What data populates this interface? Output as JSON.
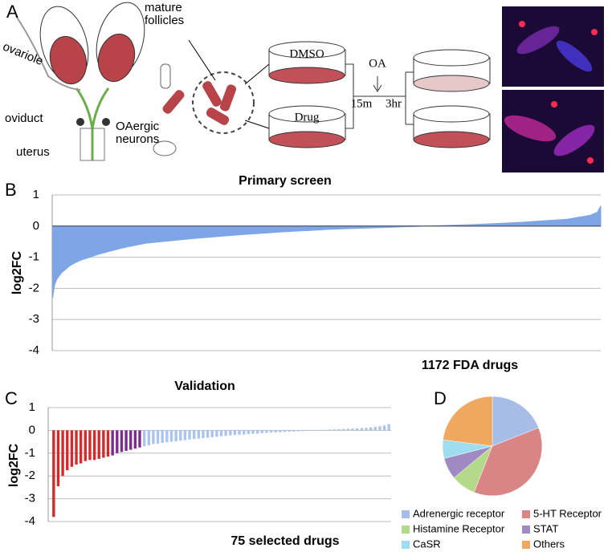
{
  "panel_labels": [
    "A",
    "B",
    "C",
    "D"
  ],
  "diagram": {
    "mature_follicles": "mature follicles",
    "ovariole": "ovariole",
    "oviduct": "oviduct",
    "uterus": "uterus",
    "oaergic_neurons": "OAergic neurons",
    "dmso": "DMSO",
    "drug": "Drug",
    "oa": "OA",
    "t1": "15m",
    "t2": "3hr"
  },
  "chart_data": [
    {
      "type": "area",
      "title": "Primary screen",
      "xlabel": "1172 FDA drugs",
      "ylabel": "log2FC",
      "color": "#7ea6e6",
      "grid": true,
      "xlim": [
        0,
        1172
      ],
      "ylim": [
        -4,
        1
      ],
      "yticks": [
        -4,
        -3,
        -2,
        -1,
        0,
        1
      ],
      "x": [
        1,
        5,
        10,
        20,
        40,
        60,
        100,
        150,
        200,
        300,
        400,
        500,
        600,
        700,
        800,
        900,
        1000,
        1100,
        1150,
        1165,
        1172
      ],
      "values": [
        -2.3,
        -1.9,
        -1.7,
        -1.5,
        -1.25,
        -1.1,
        -0.9,
        -0.7,
        -0.55,
        -0.4,
        -0.28,
        -0.18,
        -0.1,
        -0.05,
        0,
        0.05,
        0.12,
        0.22,
        0.35,
        0.45,
        0.65
      ]
    },
    {
      "type": "bar",
      "title": "Validation",
      "xlabel": "75 selected drugs",
      "ylabel": "log2FC",
      "grid": true,
      "ylim": [
        -4,
        1
      ],
      "yticks": [
        -4,
        -3,
        -2,
        -1,
        0,
        1
      ],
      "values": [
        -3.8,
        -2.45,
        -2.0,
        -1.75,
        -1.6,
        -1.5,
        -1.45,
        -1.35,
        -1.3,
        -1.3,
        -1.25,
        -1.2,
        -1.15,
        -1.1,
        -1.0,
        -0.95,
        -0.9,
        -0.85,
        -0.8,
        -0.75,
        -0.7,
        -0.65,
        -0.6,
        -0.58,
        -0.55,
        -0.52,
        -0.5,
        -0.48,
        -0.45,
        -0.43,
        -0.4,
        -0.38,
        -0.36,
        -0.34,
        -0.32,
        -0.3,
        -0.28,
        -0.26,
        -0.24,
        -0.22,
        -0.2,
        -0.19,
        -0.18,
        -0.16,
        -0.15,
        -0.14,
        -0.12,
        -0.11,
        -0.1,
        -0.09,
        -0.08,
        -0.07,
        -0.06,
        -0.05,
        -0.04,
        -0.03,
        -0.02,
        -0.01,
        0,
        0.01,
        0.02,
        0.03,
        0.04,
        0.05,
        0.06,
        0.07,
        0.08,
        0.09,
        0.1,
        0.11,
        0.13,
        0.15,
        0.18,
        0.22,
        0.28
      ],
      "colors": [
        "#d42a2a",
        "#d42a2a",
        "#d42a2a",
        "#d42a2a",
        "#d42a2a",
        "#d42a2a",
        "#d42a2a",
        "#d42a2a",
        "#d42a2a",
        "#d42a2a",
        "#d42a2a",
        "#d42a2a",
        "#d42a2a",
        "#7a2d8e",
        "#7a2d8e",
        "#7a2d8e",
        "#7a2d8e",
        "#7a2d8e",
        "#7a2d8e",
        "#7a2d8e",
        "#a9c4ee",
        "#a9c4ee",
        "#a9c4ee",
        "#a9c4ee",
        "#a9c4ee",
        "#a9c4ee",
        "#a9c4ee",
        "#a9c4ee",
        "#a9c4ee",
        "#a9c4ee",
        "#a9c4ee",
        "#a9c4ee",
        "#a9c4ee",
        "#a9c4ee",
        "#a9c4ee",
        "#a9c4ee",
        "#a9c4ee",
        "#a9c4ee",
        "#a9c4ee",
        "#a9c4ee",
        "#a9c4ee",
        "#a9c4ee",
        "#a9c4ee",
        "#a9c4ee",
        "#a9c4ee",
        "#a9c4ee",
        "#a9c4ee",
        "#a9c4ee",
        "#a9c4ee",
        "#a9c4ee",
        "#a9c4ee",
        "#a9c4ee",
        "#a9c4ee",
        "#a9c4ee",
        "#a9c4ee",
        "#a9c4ee",
        "#a9c4ee",
        "#a9c4ee",
        "#a9c4ee",
        "#a9c4ee",
        "#a9c4ee",
        "#a9c4ee",
        "#a9c4ee",
        "#a9c4ee",
        "#a9c4ee",
        "#a9c4ee",
        "#a9c4ee",
        "#a9c4ee",
        "#a9c4ee",
        "#a9c4ee",
        "#a9c4ee",
        "#a9c4ee",
        "#a9c4ee",
        "#a9c4ee",
        "#a9c4ee"
      ]
    },
    {
      "type": "pie",
      "legend": "bottom",
      "categories": [
        "Adrenergic receptor",
        "5-HT Receptor",
        "Histamine Receptor",
        "STAT",
        "CaSR",
        "Others"
      ],
      "values": [
        19,
        37,
        8,
        7,
        6,
        23
      ],
      "colors": [
        "#a7bde8",
        "#d98585",
        "#b4d98a",
        "#a08ac4",
        "#9edcf0",
        "#f0a860"
      ]
    }
  ]
}
